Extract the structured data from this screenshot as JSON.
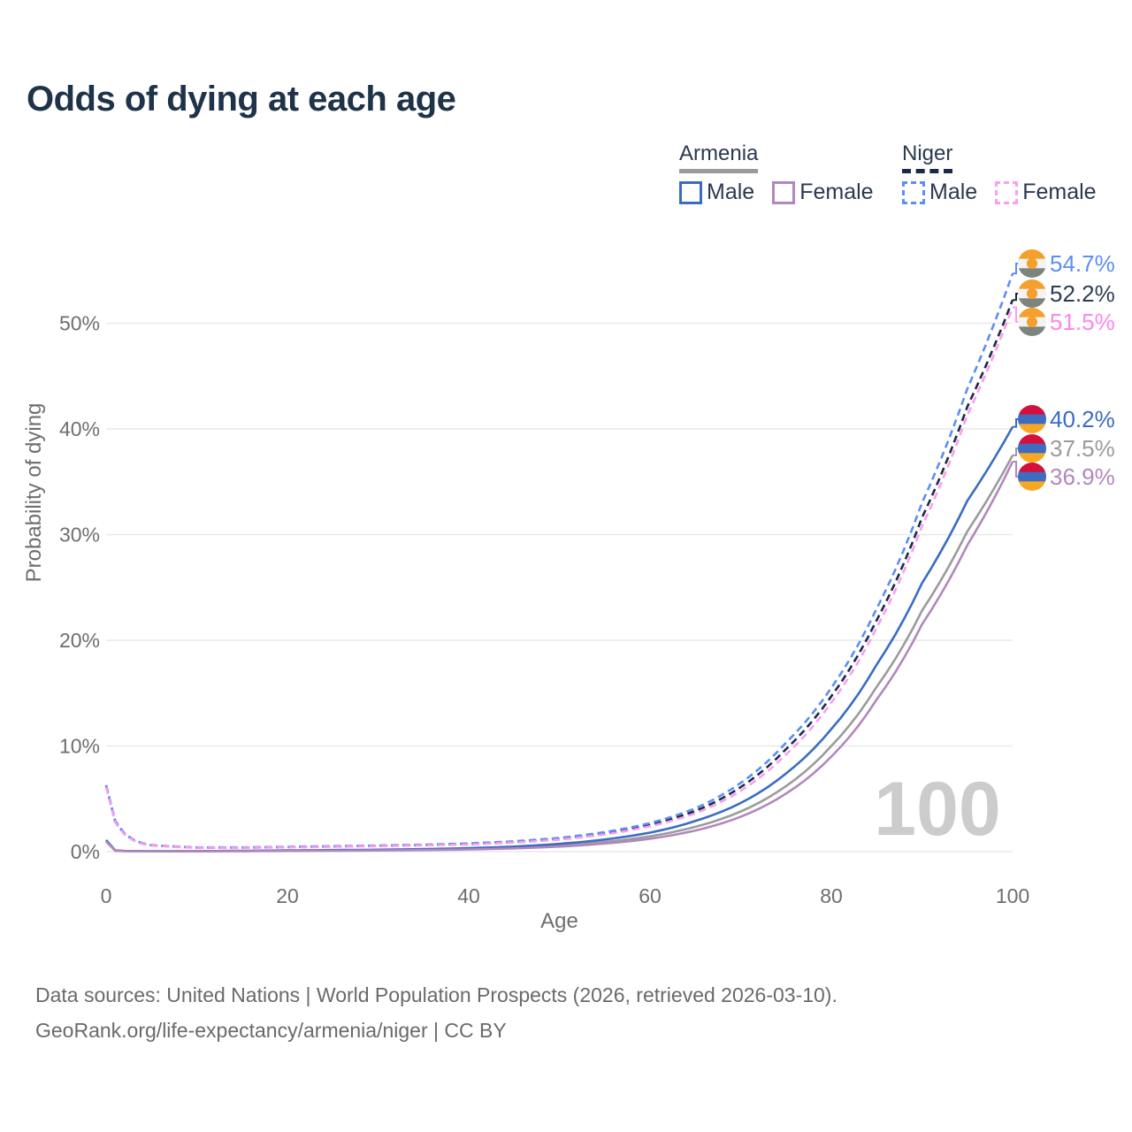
{
  "title": "Odds of dying at each age",
  "watermark": "100",
  "legend": {
    "groups": [
      {
        "name": "Armenia",
        "line_style": "solid",
        "underline_color": "#9b9b9b",
        "items": [
          {
            "label": "Male",
            "color": "#3a6cc4"
          },
          {
            "label": "Female",
            "color": "#b287bd"
          }
        ]
      },
      {
        "name": "Niger",
        "line_style": "dashed",
        "underline_color": "#1c2b45",
        "items": [
          {
            "label": "Male",
            "color": "#5d8ef4"
          },
          {
            "label": "Female",
            "color": "#fb9df1"
          }
        ]
      }
    ]
  },
  "footer": {
    "line1": "Data sources: United Nations | World Population Prospects (2026, retrieved 2026-03-10).",
    "line2": "GeoRank.org/life-expectancy/armenia/niger | CC BY"
  },
  "chart_data": {
    "type": "line",
    "title": "Odds of dying at each age",
    "xlabel": "Age",
    "ylabel": "Probability of dying",
    "xlim": [
      0,
      100
    ],
    "ylim": [
      0,
      57
    ],
    "x_ticks": [
      0,
      20,
      40,
      60,
      80,
      100
    ],
    "y_ticks": [
      0,
      10,
      20,
      30,
      40,
      50
    ],
    "y_tick_suffix": "%",
    "grid": true,
    "legend_position": "top-right",
    "axis_color": "#6e6e6e",
    "grid_color": "#e9e9e9",
    "watermark_color": "#cccccc",
    "flags": {
      "armenia": {
        "bands": [
          "#d6103c",
          "#3d6cc0",
          "#f7a823"
        ]
      },
      "niger": {
        "bands": [
          "#f5a02d",
          "#f3f3f3",
          "#7d847d"
        ],
        "dot": "#f5a02d"
      }
    },
    "series": [
      {
        "name": "Armenia (both sexes)",
        "country": "Armenia",
        "dash": false,
        "color": "#9b9b9d",
        "label_color": "#9b9b9b",
        "flag": "armenia",
        "end_label": "37.5%",
        "end_value": 37.5,
        "points": [
          [
            0,
            1.0
          ],
          [
            1,
            0.1
          ],
          [
            2,
            0.06
          ],
          [
            5,
            0.04
          ],
          [
            10,
            0.04
          ],
          [
            15,
            0.06
          ],
          [
            20,
            0.09
          ],
          [
            25,
            0.11
          ],
          [
            30,
            0.14
          ],
          [
            35,
            0.18
          ],
          [
            40,
            0.25
          ],
          [
            45,
            0.37
          ],
          [
            50,
            0.58
          ],
          [
            55,
            0.91
          ],
          [
            60,
            1.45
          ],
          [
            65,
            2.35
          ],
          [
            70,
            3.8
          ],
          [
            75,
            6.2
          ],
          [
            80,
            10.0
          ],
          [
            85,
            15.6
          ],
          [
            90,
            22.8
          ],
          [
            95,
            30.3
          ],
          [
            100,
            37.5
          ]
        ]
      },
      {
        "name": "Armenia Male",
        "country": "Armenia",
        "sex": "Male",
        "dash": false,
        "color": "#3a6cc4",
        "label_color": "#3a6cc4",
        "flag": "armenia",
        "end_label": "40.2%",
        "end_value": 40.2,
        "points": [
          [
            0,
            1.1
          ],
          [
            1,
            0.12
          ],
          [
            2,
            0.07
          ],
          [
            5,
            0.05
          ],
          [
            10,
            0.05
          ],
          [
            15,
            0.08
          ],
          [
            20,
            0.12
          ],
          [
            25,
            0.15
          ],
          [
            30,
            0.18
          ],
          [
            35,
            0.24
          ],
          [
            40,
            0.33
          ],
          [
            45,
            0.48
          ],
          [
            50,
            0.74
          ],
          [
            55,
            1.15
          ],
          [
            60,
            1.8
          ],
          [
            65,
            2.9
          ],
          [
            70,
            4.6
          ],
          [
            75,
            7.4
          ],
          [
            80,
            11.6
          ],
          [
            85,
            17.7
          ],
          [
            90,
            25.4
          ],
          [
            95,
            33.2
          ],
          [
            100,
            40.2
          ]
        ]
      },
      {
        "name": "Armenia Female",
        "country": "Armenia",
        "sex": "Female",
        "dash": false,
        "color": "#b287bd",
        "label_color": "#b287bd",
        "flag": "armenia",
        "end_label": "36.9%",
        "end_value": 36.9,
        "points": [
          [
            0,
            0.95
          ],
          [
            1,
            0.09
          ],
          [
            2,
            0.05
          ],
          [
            5,
            0.035
          ],
          [
            10,
            0.035
          ],
          [
            15,
            0.05
          ],
          [
            20,
            0.07
          ],
          [
            25,
            0.09
          ],
          [
            30,
            0.11
          ],
          [
            35,
            0.15
          ],
          [
            40,
            0.21
          ],
          [
            45,
            0.31
          ],
          [
            50,
            0.48
          ],
          [
            55,
            0.77
          ],
          [
            60,
            1.22
          ],
          [
            65,
            2.0
          ],
          [
            70,
            3.3
          ],
          [
            75,
            5.5
          ],
          [
            80,
            9.0
          ],
          [
            85,
            14.4
          ],
          [
            90,
            21.5
          ],
          [
            95,
            29.0
          ],
          [
            100,
            36.9
          ]
        ]
      },
      {
        "name": "Niger (both sexes)",
        "country": "Niger",
        "dash": true,
        "color": "#1c2b45",
        "label_color": "#2e3d55",
        "flag": "niger",
        "end_label": "52.2%",
        "end_value": 52.2,
        "points": [
          [
            0,
            6.2
          ],
          [
            1,
            2.8
          ],
          [
            2,
            1.7
          ],
          [
            3,
            1.1
          ],
          [
            4,
            0.77
          ],
          [
            5,
            0.6
          ],
          [
            10,
            0.38
          ],
          [
            15,
            0.38
          ],
          [
            20,
            0.43
          ],
          [
            25,
            0.49
          ],
          [
            30,
            0.55
          ],
          [
            35,
            0.62
          ],
          [
            40,
            0.73
          ],
          [
            45,
            0.92
          ],
          [
            50,
            1.22
          ],
          [
            55,
            1.74
          ],
          [
            60,
            2.55
          ],
          [
            65,
            3.85
          ],
          [
            70,
            6.1
          ],
          [
            75,
            9.7
          ],
          [
            80,
            14.7
          ],
          [
            85,
            21.9
          ],
          [
            90,
            31.6
          ],
          [
            95,
            42.1
          ],
          [
            100,
            52.2
          ]
        ]
      },
      {
        "name": "Niger Male",
        "country": "Niger",
        "sex": "Male",
        "dash": true,
        "color": "#5d8ef4",
        "label_color": "#5d8ef4",
        "flag": "niger",
        "end_label": "54.7%",
        "end_value": 54.7,
        "points": [
          [
            0,
            6.3
          ],
          [
            1,
            2.9
          ],
          [
            2,
            1.75
          ],
          [
            3,
            1.15
          ],
          [
            4,
            0.8
          ],
          [
            5,
            0.62
          ],
          [
            10,
            0.4
          ],
          [
            15,
            0.4
          ],
          [
            20,
            0.46
          ],
          [
            25,
            0.52
          ],
          [
            30,
            0.58
          ],
          [
            35,
            0.66
          ],
          [
            40,
            0.78
          ],
          [
            45,
            0.98
          ],
          [
            50,
            1.3
          ],
          [
            55,
            1.85
          ],
          [
            60,
            2.7
          ],
          [
            65,
            4.1
          ],
          [
            70,
            6.5
          ],
          [
            75,
            10.3
          ],
          [
            80,
            15.5
          ],
          [
            85,
            23.0
          ],
          [
            90,
            33.0
          ],
          [
            95,
            43.8
          ],
          [
            100,
            54.7
          ]
        ]
      },
      {
        "name": "Niger Female",
        "country": "Niger",
        "sex": "Female",
        "dash": true,
        "color": "#fb9df1",
        "label_color": "#fb86ec",
        "flag": "niger",
        "end_label": "51.5%",
        "end_value": 51.5,
        "points": [
          [
            0,
            6.1
          ],
          [
            1,
            2.75
          ],
          [
            2,
            1.65
          ],
          [
            3,
            1.07
          ],
          [
            4,
            0.74
          ],
          [
            5,
            0.58
          ],
          [
            10,
            0.37
          ],
          [
            15,
            0.36
          ],
          [
            20,
            0.41
          ],
          [
            25,
            0.46
          ],
          [
            30,
            0.52
          ],
          [
            35,
            0.59
          ],
          [
            40,
            0.68
          ],
          [
            45,
            0.86
          ],
          [
            50,
            1.14
          ],
          [
            55,
            1.63
          ],
          [
            60,
            2.4
          ],
          [
            65,
            3.62
          ],
          [
            70,
            5.75
          ],
          [
            75,
            9.2
          ],
          [
            80,
            14.1
          ],
          [
            85,
            21.2
          ],
          [
            90,
            30.8
          ],
          [
            95,
            41.3
          ],
          [
            100,
            51.5
          ]
        ]
      }
    ]
  }
}
